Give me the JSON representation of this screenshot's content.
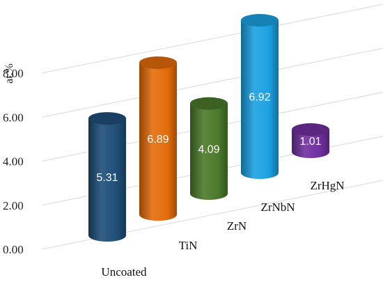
{
  "chart_data": {
    "type": "bar",
    "categories": [
      "Uncoated",
      "TiN",
      "ZrN",
      "ZrNbN",
      "ZrHgN"
    ],
    "values": [
      5.31,
      6.89,
      4.09,
      6.92,
      1.01
    ],
    "value_labels": [
      "5.31",
      "6.89",
      "4.09",
      "6.92",
      "1.01"
    ],
    "ylabel": "at.%",
    "ylim": [
      0,
      8
    ],
    "yticks": [
      "0.00",
      "2.00",
      "4.00",
      "6.00",
      "8.00"
    ],
    "colors": [
      "#1f4e79",
      "#e46c0a",
      "#4a7a2a",
      "#1ba1e2",
      "#7030a0"
    ],
    "grid": true,
    "style": "3d-cylinder"
  }
}
